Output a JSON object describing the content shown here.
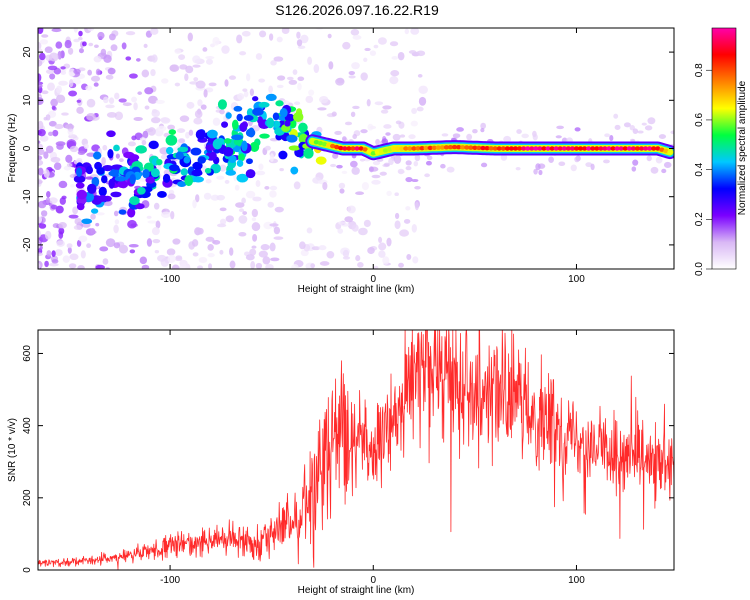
{
  "title": "S126.2026.097.16.22.R19",
  "chart_data": [
    {
      "type": "heatmap",
      "title": "S126.2026.097.16.22.R19",
      "xlabel": "Height of straight line (km)",
      "ylabel": "Frequency (Hz)",
      "xlim": [
        -165,
        148
      ],
      "ylim": [
        -25,
        25
      ],
      "xticks": [
        -100,
        0,
        100
      ],
      "yticks": [
        -20,
        -10,
        0,
        10,
        20
      ],
      "colorbar": {
        "label": "Normalized spectral amplitude",
        "range": [
          0.0,
          0.97
        ],
        "ticks": [
          0.0,
          0.2,
          0.4,
          0.6,
          0.8
        ],
        "tick_labels": [
          "0.0",
          "0.2",
          "0.4",
          "0.6",
          "0.8"
        ],
        "colormap": [
          "#ffffff",
          "#d9b8f5",
          "#7a00ff",
          "#0000ff",
          "#00c8ff",
          "#00ff40",
          "#ffff00",
          "#ff8000",
          "#ff0000",
          "#ff00aa"
        ]
      },
      "ridge": {
        "x": [
          -140,
          -120,
          -100,
          -80,
          -60,
          -45,
          -35,
          -25,
          -15,
          -5,
          0,
          10,
          20,
          40,
          60,
          80,
          100,
          120,
          140,
          148
        ],
        "frequency": [
          -7,
          -6,
          -4,
          -1,
          3,
          5,
          2,
          1,
          0,
          0,
          -1,
          0,
          0,
          0.3,
          0,
          0,
          0,
          0,
          0,
          -1
        ],
        "amplitude": [
          0.35,
          0.4,
          0.45,
          0.45,
          0.45,
          0.5,
          0.55,
          0.6,
          0.9,
          0.9,
          0.6,
          0.7,
          0.8,
          0.8,
          0.85,
          0.95,
          0.95,
          0.95,
          0.9,
          0.6
        ]
      }
    },
    {
      "type": "line",
      "title": "",
      "xlabel": "Height of straight line (km)",
      "ylabel": "SNR (10 * v/v)",
      "xlim": [
        -165,
        148
      ],
      "ylim": [
        0,
        665
      ],
      "xticks": [
        -100,
        0,
        100
      ],
      "yticks": [
        0,
        200,
        400,
        600
      ],
      "color": "#ff2a2a",
      "series": [
        {
          "name": "SNR",
          "x": [
            -165,
            -140,
            -120,
            -100,
            -80,
            -60,
            -50,
            -40,
            -35,
            -30,
            -25,
            -20,
            -15,
            -10,
            -5,
            0,
            5,
            10,
            15,
            20,
            25,
            30,
            35,
            40,
            50,
            60,
            70,
            80,
            90,
            100,
            110,
            120,
            130,
            140,
            148
          ],
          "values": [
            20,
            25,
            40,
            65,
            85,
            80,
            100,
            130,
            170,
            230,
            280,
            330,
            350,
            380,
            380,
            310,
            360,
            420,
            480,
            540,
            600,
            560,
            540,
            530,
            520,
            490,
            470,
            430,
            400,
            370,
            340,
            320,
            300,
            290,
            280
          ]
        }
      ]
    }
  ]
}
